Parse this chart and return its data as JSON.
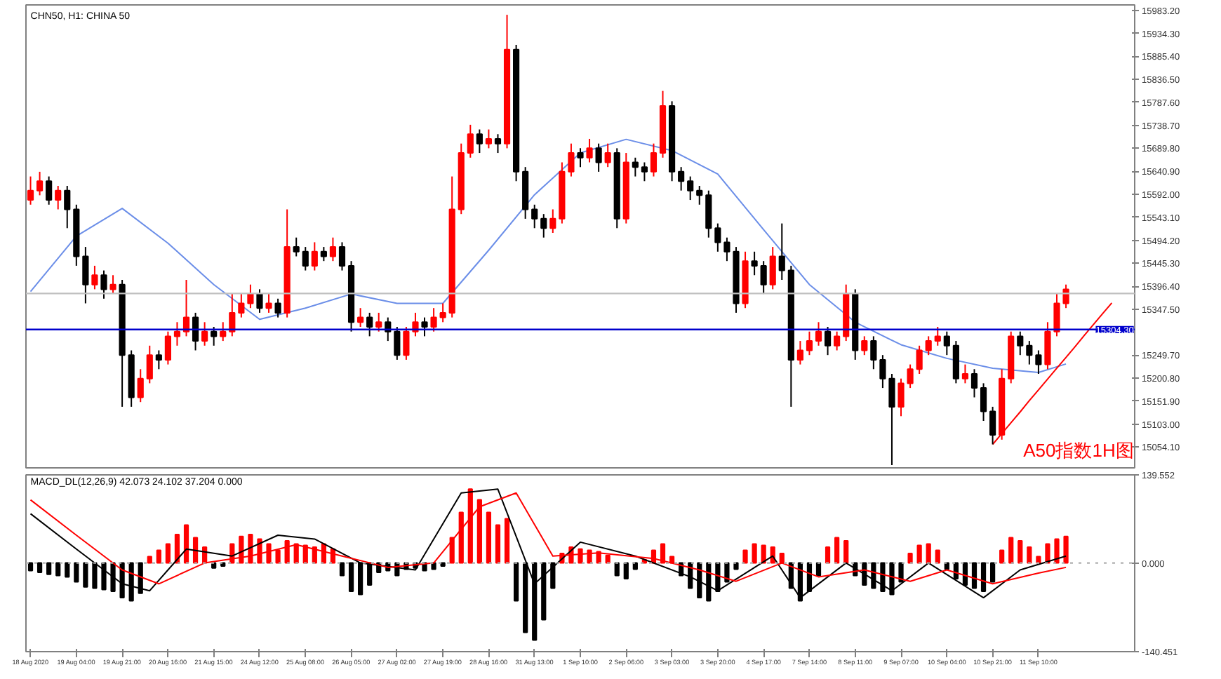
{
  "chart_data": [
    {
      "type": "candlestick",
      "title": "CHN50, H1: CHINA 50",
      "annotations": [
        "A50指数1H图"
      ],
      "categories": [
        null,
        null,
        null,
        null,
        null,
        null,
        null,
        null,
        null,
        null,
        null,
        null,
        null,
        null,
        null,
        null,
        null,
        null,
        null,
        null,
        null,
        null,
        null,
        null,
        null,
        null,
        null,
        null,
        null,
        null,
        null,
        null,
        null,
        null,
        null,
        null,
        null,
        null,
        null,
        null,
        null,
        null,
        null,
        null,
        null,
        null,
        null,
        null,
        null,
        null,
        null,
        null,
        null,
        null,
        null,
        null,
        null,
        null,
        null,
        null,
        null,
        null,
        null,
        null,
        null,
        null,
        null,
        null,
        null,
        null,
        null,
        null,
        null,
        null,
        null,
        null,
        null,
        null,
        null,
        null,
        null,
        null,
        null,
        null,
        null,
        null,
        null,
        null,
        null,
        null,
        null,
        null,
        null,
        null,
        null,
        null,
        null,
        null,
        null,
        null,
        null,
        null,
        null,
        null,
        null,
        null,
        null,
        null,
        null,
        null,
        null,
        null,
        null,
        null,
        null,
        null,
        null,
        null,
        null,
        null,
        null
      ],
      "ohlc": [
        [
          15580,
          15630,
          15570,
          15600
        ],
        [
          15600,
          15640,
          15590,
          15620
        ],
        [
          15620,
          15630,
          15570,
          15580
        ],
        [
          15580,
          15610,
          15560,
          15600
        ],
        [
          15600,
          15610,
          15520,
          15560
        ],
        [
          15560,
          15570,
          15440,
          15460
        ],
        [
          15460,
          15480,
          15360,
          15400
        ],
        [
          15400,
          15440,
          15390,
          15420
        ],
        [
          15420,
          15430,
          15370,
          15390
        ],
        [
          15390,
          15420,
          15380,
          15400
        ],
        [
          15400,
          15410,
          15140,
          15250
        ],
        [
          15250,
          15260,
          15140,
          15160
        ],
        [
          15160,
          15220,
          15150,
          15200
        ],
        [
          15200,
          15270,
          15190,
          15250
        ],
        [
          15250,
          15260,
          15220,
          15240
        ],
        [
          15240,
          15300,
          15230,
          15290
        ],
        [
          15290,
          15320,
          15270,
          15300
        ],
        [
          15300,
          15410,
          15290,
          15330
        ],
        [
          15330,
          15340,
          15260,
          15280
        ],
        [
          15280,
          15320,
          15270,
          15300
        ],
        [
          15300,
          15310,
          15270,
          15290
        ],
        [
          15290,
          15320,
          15280,
          15300
        ],
        [
          15300,
          15380,
          15290,
          15340
        ],
        [
          15340,
          15380,
          15330,
          15360
        ],
        [
          15360,
          15400,
          15350,
          15380
        ],
        [
          15380,
          15390,
          15340,
          15350
        ],
        [
          15350,
          15380,
          15340,
          15360
        ],
        [
          15360,
          15370,
          15330,
          15340
        ],
        [
          15340,
          15560,
          15330,
          15480
        ],
        [
          15480,
          15500,
          15460,
          15470
        ],
        [
          15470,
          15480,
          15430,
          15440
        ],
        [
          15440,
          15490,
          15430,
          15470
        ],
        [
          15470,
          15480,
          15450,
          15460
        ],
        [
          15460,
          15500,
          15450,
          15480
        ],
        [
          15480,
          15490,
          15430,
          15440
        ],
        [
          15440,
          15450,
          15300,
          15320
        ],
        [
          15320,
          15350,
          15310,
          15330
        ],
        [
          15330,
          15340,
          15290,
          15310
        ],
        [
          15310,
          15340,
          15300,
          15320
        ],
        [
          15320,
          15330,
          15280,
          15300
        ],
        [
          15300,
          15310,
          15240,
          15250
        ],
        [
          15250,
          15310,
          15240,
          15300
        ],
        [
          15300,
          15340,
          15290,
          15320
        ],
        [
          15320,
          15330,
          15290,
          15310
        ],
        [
          15310,
          15350,
          15300,
          15330
        ],
        [
          15330,
          15360,
          15320,
          15340
        ],
        [
          15340,
          15630,
          15330,
          15560
        ],
        [
          15560,
          15700,
          15550,
          15680
        ],
        [
          15680,
          15740,
          15670,
          15720
        ],
        [
          15720,
          15730,
          15680,
          15700
        ],
        [
          15700,
          15730,
          15690,
          15710
        ],
        [
          15710,
          15720,
          15680,
          15700
        ],
        [
          15700,
          15974,
          15690,
          15900
        ],
        [
          15900,
          15910,
          15620,
          15640
        ],
        [
          15640,
          15650,
          15540,
          15560
        ],
        [
          15560,
          15570,
          15520,
          15540
        ],
        [
          15540,
          15550,
          15500,
          15520
        ],
        [
          15520,
          15560,
          15510,
          15540
        ],
        [
          15540,
          15660,
          15530,
          15640
        ],
        [
          15640,
          15700,
          15630,
          15680
        ],
        [
          15680,
          15690,
          15650,
          15670
        ],
        [
          15670,
          15710,
          15660,
          15690
        ],
        [
          15690,
          15700,
          15640,
          15660
        ],
        [
          15660,
          15700,
          15650,
          15680
        ],
        [
          15680,
          15690,
          15520,
          15540
        ],
        [
          15540,
          15680,
          15530,
          15660
        ],
        [
          15660,
          15670,
          15630,
          15650
        ],
        [
          15650,
          15660,
          15620,
          15640
        ],
        [
          15640,
          15700,
          15630,
          15680
        ],
        [
          15680,
          15812,
          15670,
          15780
        ],
        [
          15780,
          15790,
          15620,
          15640
        ],
        [
          15640,
          15650,
          15600,
          15620
        ],
        [
          15620,
          15630,
          15580,
          15600
        ],
        [
          15600,
          15610,
          15570,
          15590
        ],
        [
          15590,
          15600,
          15500,
          15520
        ],
        [
          15520,
          15530,
          15470,
          15490
        ],
        [
          15490,
          15500,
          15450,
          15470
        ],
        [
          15470,
          15480,
          15340,
          15360
        ],
        [
          15360,
          15470,
          15350,
          15450
        ],
        [
          15450,
          15470,
          15420,
          15440
        ],
        [
          15440,
          15450,
          15380,
          15400
        ],
        [
          15400,
          15480,
          15390,
          15460
        ],
        [
          15460,
          15530,
          15410,
          15430
        ],
        [
          15430,
          15440,
          15140,
          15240
        ],
        [
          15240,
          15280,
          15230,
          15260
        ],
        [
          15260,
          15300,
          15250,
          15280
        ],
        [
          15280,
          15320,
          15270,
          15300
        ],
        [
          15300,
          15310,
          15250,
          15270
        ],
        [
          15270,
          15300,
          15260,
          15290
        ],
        [
          15290,
          15400,
          15280,
          15380
        ],
        [
          15380,
          15390,
          15240,
          15260
        ],
        [
          15260,
          15290,
          15250,
          15280
        ],
        [
          15280,
          15290,
          15220,
          15240
        ],
        [
          15240,
          15250,
          15180,
          15200
        ],
        [
          15200,
          15210,
          15016,
          15140
        ],
        [
          15140,
          15200,
          15120,
          15190
        ],
        [
          15190,
          15230,
          15180,
          15220
        ],
        [
          15220,
          15270,
          15210,
          15260
        ],
        [
          15260,
          15290,
          15250,
          15280
        ],
        [
          15280,
          15310,
          15270,
          15290
        ],
        [
          15290,
          15300,
          15250,
          15270
        ],
        [
          15270,
          15280,
          15190,
          15200
        ],
        [
          15200,
          15230,
          15190,
          15210
        ],
        [
          15210,
          15220,
          15160,
          15180
        ],
        [
          15180,
          15190,
          15110,
          15130
        ],
        [
          15130,
          15140,
          15060,
          15080
        ],
        [
          15080,
          15220,
          15070,
          15200
        ],
        [
          15200,
          15300,
          15190,
          15290
        ],
        [
          15290,
          15300,
          15250,
          15270
        ],
        [
          15270,
          15280,
          15230,
          15250
        ],
        [
          15250,
          15260,
          15210,
          15230
        ],
        [
          15230,
          15320,
          15220,
          15300
        ],
        [
          15300,
          15380,
          15290,
          15360
        ],
        [
          15360,
          15400,
          15350,
          15390
        ],
        null,
        null,
        null,
        null,
        null,
        null,
        null
      ],
      "colors": [
        "#ff0000",
        "#ff0000",
        "#000000",
        "#ff0000",
        "#000000",
        "#000000",
        "#000000",
        "#ff0000",
        "#000000",
        "#ff0000",
        "#000000",
        "#000000",
        "#ff0000",
        "#ff0000",
        "#000000",
        "#ff0000",
        "#ff0000",
        "#ff0000",
        "#000000",
        "#ff0000",
        "#000000",
        "#ff0000",
        "#ff0000",
        "#ff0000",
        "#ff0000",
        "#000000",
        "#ff0000",
        "#000000",
        "#ff0000",
        "#000000",
        "#000000",
        "#ff0000",
        "#000000",
        "#ff0000",
        "#000000",
        "#000000",
        "#ff0000",
        "#000000",
        "#ff0000",
        "#000000",
        "#000000",
        "#ff0000",
        "#ff0000",
        "#000000",
        "#ff0000",
        "#ff0000",
        "#ff0000",
        "#ff0000",
        "#ff0000",
        "#000000",
        "#ff0000",
        "#000000",
        "#ff0000",
        "#000000",
        "#000000",
        "#000000",
        "#000000",
        "#ff0000",
        "#ff0000",
        "#ff0000",
        "#000000",
        "#ff0000",
        "#000000",
        "#ff0000",
        "#000000",
        "#ff0000",
        "#000000",
        "#000000",
        "#ff0000",
        "#ff0000",
        "#000000",
        "#000000",
        "#000000",
        "#000000",
        "#000000",
        "#000000",
        "#000000",
        "#000000",
        "#ff0000",
        "#000000",
        "#000000",
        "#ff0000",
        "#000000",
        "#000000",
        "#ff0000",
        "#ff0000",
        "#ff0000",
        "#000000",
        "#ff0000",
        "#ff0000",
        "#000000",
        "#ff0000",
        "#000000",
        "#000000",
        "#000000",
        "#ff0000",
        "#ff0000",
        "#ff0000",
        "#ff0000",
        "#ff0000",
        "#000000",
        "#000000",
        "#ff0000",
        "#000000",
        "#000000",
        "#000000",
        "#ff0000",
        "#ff0000",
        "#000000",
        "#000000",
        "#000000",
        "#ff0000",
        "#ff0000",
        "#ff0000",
        null,
        null,
        null,
        null,
        null,
        null,
        null
      ],
      "series": [
        {
          "type": "line",
          "color": "#6b8ee8",
          "values": [
            15385,
            null,
            null,
            null,
            null,
            15503,
            null,
            null,
            null,
            null,
            15562,
            null,
            null,
            null,
            null,
            15488,
            null,
            null,
            null,
            null,
            15400,
            null,
            null,
            null,
            null,
            15326,
            null,
            null,
            null,
            null,
            15350,
            null,
            null,
            null,
            null,
            15380,
            null,
            null,
            null,
            null,
            15360,
            null,
            null,
            null,
            null,
            15360,
            null,
            null,
            null,
            null,
            15473,
            null,
            null,
            null,
            null,
            15591,
            null,
            null,
            null,
            null,
            15680,
            null,
            null,
            null,
            null,
            15709,
            null,
            null,
            null,
            null,
            15685,
            null,
            null,
            null,
            null,
            15635,
            null,
            null,
            null,
            null,
            15517,
            null,
            null,
            null,
            null,
            15400,
            null,
            null,
            null,
            null,
            15320,
            null,
            null,
            null,
            null,
            15272,
            null,
            null,
            null,
            null,
            15243,
            null,
            null,
            null,
            null,
            15222,
            null,
            null,
            null,
            null,
            15213,
            null,
            null,
            15231,
            null,
            null,
            null,
            null,
            null,
            null,
            null
          ]
        },
        {
          "type": "line",
          "color": "#ff0000",
          "values": [
            null,
            null,
            null,
            null,
            null,
            null,
            null,
            null,
            null,
            null,
            null,
            null,
            null,
            null,
            null,
            null,
            null,
            null,
            null,
            null,
            null,
            null,
            null,
            null,
            null,
            null,
            null,
            null,
            null,
            null,
            null,
            null,
            null,
            null,
            null,
            null,
            null,
            null,
            null,
            null,
            null,
            null,
            null,
            null,
            null,
            null,
            null,
            null,
            null,
            null,
            null,
            null,
            null,
            null,
            null,
            null,
            null,
            null,
            null,
            null,
            null,
            null,
            null,
            null,
            null,
            null,
            null,
            null,
            null,
            null,
            null,
            null,
            null,
            null,
            null,
            null,
            null,
            null,
            null,
            null,
            null,
            null,
            null,
            null,
            null,
            null,
            null,
            null,
            null,
            null,
            null,
            null,
            null,
            null,
            null,
            null,
            null,
            null,
            null,
            null,
            null,
            null,
            null,
            null,
            null,
            15060,
            15083,
            15106,
            15129,
            15153,
            15176,
            15199,
            15222,
            15245,
            15268,
            15292,
            15315,
            15338,
            15361,
            null,
            null
          ]
        }
      ],
      "ref_lines": [
        {
          "axis": "y",
          "value": 15304.3,
          "label": "15304.30",
          "color": "#0000cc"
        },
        {
          "axis": "y",
          "value": 15381,
          "label": null,
          "color": "#c0c0c0"
        }
      ],
      "ylim": [
        15010,
        15995
      ],
      "yticks": [
        {
          "value": 15983.2,
          "label": "15983.20"
        },
        {
          "value": 15934.3,
          "label": "15934.30"
        },
        {
          "value": 15885.4,
          "label": "15885.40"
        },
        {
          "value": 15836.5,
          "label": "15836.50"
        },
        {
          "value": 15787.6,
          "label": "15787.60"
        },
        {
          "value": 15738.7,
          "label": "15738.70"
        },
        {
          "value": 15689.8,
          "label": "15689.80"
        },
        {
          "value": 15640.9,
          "label": "15640.90"
        },
        {
          "value": 15592,
          "label": "15592.00"
        },
        {
          "value": 15543.1,
          "label": "15543.10"
        },
        {
          "value": 15494.2,
          "label": "15494.20"
        },
        {
          "value": 15445.3,
          "label": "15445.30"
        },
        {
          "value": 15396.4,
          "label": "15396.40"
        },
        {
          "value": 15347.5,
          "label": "15347.50"
        },
        {
          "value": 15249.7,
          "label": "15249.70"
        },
        {
          "value": 15200.8,
          "label": "15200.80"
        },
        {
          "value": 15151.9,
          "label": "15151.90"
        },
        {
          "value": 15103,
          "label": "15103.00"
        },
        {
          "value": 15054.1,
          "label": "15054.10"
        }
      ],
      "tick_labels": "y"
    },
    {
      "type": "bar",
      "title": "MACD_DL(12,26,9) 42.073 24.102 37.204 0.000",
      "categories": [
        "18 Aug 2020",
        null,
        null,
        null,
        null,
        "19 Aug 04:00",
        null,
        null,
        null,
        null,
        "19 Aug 21:00",
        null,
        null,
        null,
        null,
        "20 Aug 16:00",
        null,
        null,
        null,
        null,
        "21 Aug 15:00",
        null,
        null,
        null,
        null,
        "24 Aug 12:00",
        null,
        null,
        null,
        null,
        "25 Aug 08:00",
        null,
        null,
        null,
        null,
        "26 Aug 05:00",
        null,
        null,
        null,
        null,
        "27 Aug 02:00",
        null,
        null,
        null,
        null,
        "27 Aug 19:00",
        null,
        null,
        null,
        null,
        "28 Aug 16:00",
        null,
        null,
        null,
        null,
        "31 Aug 13:00",
        null,
        null,
        null,
        null,
        "1 Sep 10:00",
        null,
        null,
        null,
        null,
        "2 Sep 06:00",
        null,
        null,
        null,
        null,
        "3 Sep 03:00",
        null,
        null,
        null,
        null,
        "3 Sep 20:00",
        null,
        null,
        null,
        null,
        "4 Sep 17:00",
        null,
        null,
        null,
        null,
        "7 Sep 14:00",
        null,
        null,
        null,
        null,
        "8 Sep 11:00",
        null,
        null,
        null,
        null,
        "9 Sep 07:00",
        null,
        null,
        null,
        null,
        "10 Sep 04:00",
        null,
        null,
        null,
        null,
        "10 Sep 21:00",
        null,
        null,
        null,
        null,
        "11 Sep 10:00",
        null,
        null,
        null,
        null,
        null,
        null,
        null,
        null,
        null,
        null
      ],
      "series": [
        {
          "type": "bar",
          "values": [
            -12,
            -15,
            -18,
            -20,
            -22,
            -30,
            -38,
            -40,
            -42,
            -45,
            -55,
            -60,
            -48,
            10,
            20,
            30,
            45,
            60,
            40,
            25,
            -8,
            -5,
            30,
            42,
            45,
            38,
            30,
            20,
            35,
            30,
            28,
            25,
            30,
            22,
            -20,
            -45,
            -50,
            -35,
            -15,
            -12,
            -20,
            -10,
            -8,
            -12,
            -10,
            -5,
            40,
            80,
            117,
            100,
            80,
            60,
            70,
            -60,
            -110,
            -122,
            -90,
            -40,
            15,
            25,
            22,
            20,
            18,
            12,
            -20,
            -25,
            -10,
            5,
            20,
            30,
            10,
            -20,
            -40,
            -55,
            -60,
            -45,
            -30,
            -10,
            20,
            30,
            28,
            25,
            15,
            -40,
            -60,
            -45,
            -20,
            25,
            40,
            35,
            -20,
            -35,
            -40,
            -45,
            -50,
            -30,
            15,
            28,
            30,
            20,
            -10,
            -25,
            -35,
            -40,
            -45,
            -30,
            20,
            40,
            35,
            25,
            10,
            30,
            38,
            42,
            null,
            null,
            null,
            null,
            null,
            null,
            null
          ],
          "colors": [
            "#000000",
            "#000000",
            "#000000",
            "#000000",
            "#000000",
            "#000000",
            "#000000",
            "#000000",
            "#000000",
            "#000000",
            "#000000",
            "#000000",
            "#000000",
            "#ff0000",
            "#ff0000",
            "#ff0000",
            "#ff0000",
            "#ff0000",
            "#ff0000",
            "#ff0000",
            "#000000",
            "#000000",
            "#ff0000",
            "#ff0000",
            "#ff0000",
            "#ff0000",
            "#ff0000",
            "#ff0000",
            "#ff0000",
            "#ff0000",
            "#ff0000",
            "#ff0000",
            "#ff0000",
            "#ff0000",
            "#000000",
            "#000000",
            "#000000",
            "#000000",
            "#000000",
            "#000000",
            "#000000",
            "#000000",
            "#000000",
            "#000000",
            "#000000",
            "#000000",
            "#ff0000",
            "#ff0000",
            "#ff0000",
            "#ff0000",
            "#ff0000",
            "#ff0000",
            "#ff0000",
            "#000000",
            "#000000",
            "#000000",
            "#000000",
            "#000000",
            "#ff0000",
            "#ff0000",
            "#ff0000",
            "#ff0000",
            "#ff0000",
            "#ff0000",
            "#000000",
            "#000000",
            "#000000",
            "#ff0000",
            "#ff0000",
            "#ff0000",
            "#ff0000",
            "#000000",
            "#000000",
            "#000000",
            "#000000",
            "#000000",
            "#000000",
            "#000000",
            "#ff0000",
            "#ff0000",
            "#ff0000",
            "#ff0000",
            "#ff0000",
            "#000000",
            "#000000",
            "#000000",
            "#000000",
            "#ff0000",
            "#ff0000",
            "#ff0000",
            "#000000",
            "#000000",
            "#000000",
            "#000000",
            "#000000",
            "#000000",
            "#ff0000",
            "#ff0000",
            "#ff0000",
            "#ff0000",
            "#000000",
            "#000000",
            "#000000",
            "#000000",
            "#000000",
            "#000000",
            "#ff0000",
            "#ff0000",
            "#ff0000",
            "#ff0000",
            "#ff0000",
            "#ff0000",
            "#ff0000",
            "#ff0000",
            null,
            null,
            null,
            null,
            null,
            null,
            null
          ]
        },
        {
          "type": "line",
          "color": "#000000",
          "values": [
            78,
            null,
            null,
            null,
            null,
            22,
            null,
            null,
            null,
            null,
            -33,
            null,
            null,
            -44,
            null,
            null,
            null,
            22,
            null,
            null,
            null,
            null,
            11,
            null,
            null,
            null,
            null,
            44,
            null,
            null,
            null,
            38,
            null,
            null,
            null,
            null,
            0,
            null,
            null,
            null,
            null,
            null,
            -11,
            null,
            null,
            null,
            null,
            111,
            null,
            null,
            null,
            117,
            null,
            null,
            null,
            -33,
            null,
            null,
            null,
            null,
            33,
            null,
            null,
            null,
            null,
            null,
            11,
            null,
            null,
            null,
            null,
            null,
            -22,
            null,
            null,
            -44,
            null,
            null,
            null,
            null,
            null,
            11,
            null,
            null,
            -55,
            null,
            null,
            null,
            null,
            0,
            null,
            null,
            null,
            null,
            -44,
            null,
            null,
            null,
            0,
            null,
            null,
            null,
            null,
            null,
            -55,
            null,
            null,
            null,
            -11,
            null,
            null,
            null,
            null,
            11,
            null,
            null,
            null,
            null,
            null,
            null,
            null
          ]
        },
        {
          "type": "line",
          "color": "#ff0000",
          "values": [
            100,
            null,
            null,
            null,
            null,
            44,
            null,
            null,
            null,
            null,
            -11,
            null,
            null,
            null,
            -33,
            null,
            null,
            null,
            null,
            0,
            null,
            null,
            null,
            null,
            11,
            null,
            null,
            null,
            null,
            29,
            null,
            null,
            null,
            null,
            11,
            null,
            null,
            null,
            null,
            -7,
            null,
            null,
            null,
            null,
            0,
            null,
            null,
            null,
            null,
            89,
            null,
            null,
            null,
            111,
            null,
            null,
            null,
            11,
            null,
            null,
            null,
            null,
            16,
            null,
            null,
            null,
            null,
            null,
            7,
            null,
            null,
            null,
            null,
            -11,
            null,
            null,
            null,
            -29,
            null,
            null,
            null,
            null,
            0,
            null,
            null,
            null,
            -22,
            null,
            null,
            null,
            null,
            -11,
            null,
            null,
            null,
            null,
            -29,
            null,
            null,
            null,
            -11,
            null,
            null,
            null,
            null,
            -33,
            null,
            null,
            null,
            null,
            -16,
            null,
            null,
            -7,
            null,
            null,
            null,
            null,
            null,
            null,
            null
          ]
        }
      ],
      "ref_lines": [
        {
          "axis": "y",
          "value": 0,
          "label": null,
          "color": "#b0b0b0",
          "line_style": "dotted"
        }
      ],
      "ylim": [
        -140.451,
        139.552
      ],
      "yticks": [
        139.552,
        {
          "value": 0,
          "label": "0.000"
        },
        -140.451
      ]
    }
  ]
}
